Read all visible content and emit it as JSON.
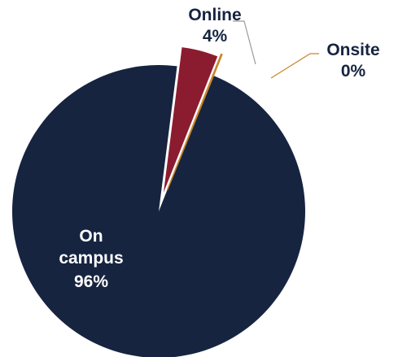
{
  "chart_data": {
    "type": "pie",
    "slices": [
      {
        "label": "On campus",
        "value_label": "96%",
        "value": 96,
        "color": "#162440"
      },
      {
        "label": "Online",
        "value_label": "4%",
        "value": 4,
        "color": "#8b1c30"
      },
      {
        "label": "Onsite",
        "value_label": "0%",
        "value": 0,
        "color": "#c8862a"
      }
    ],
    "legend": "none",
    "exploded": true
  }
}
